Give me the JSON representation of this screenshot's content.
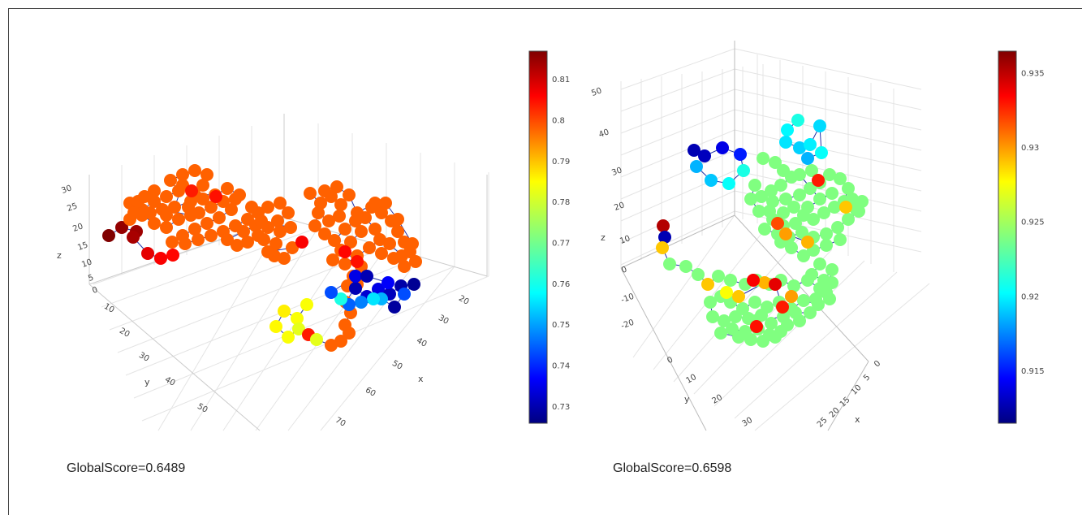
{
  "chart_data": [
    {
      "type": "scatter3d",
      "title": "",
      "xlabel": "x",
      "ylabel": "y",
      "zlabel": "z",
      "x_ticks": [
        "20",
        "30",
        "40",
        "50",
        "60",
        "70"
      ],
      "y_ticks": [
        "10",
        "20",
        "30",
        "40",
        "50"
      ],
      "z_ticks": [
        "0",
        "5",
        "10",
        "15",
        "20",
        "25",
        "30"
      ],
      "colorbar": {
        "colorscale": "jet",
        "ticks": [
          "0.73",
          "0.74",
          "0.75",
          "0.76",
          "0.77",
          "0.78",
          "0.79",
          "0.8",
          "0.81"
        ],
        "range": [
          0.726,
          0.817
        ]
      },
      "global_score_label": "GlobalScore=0.6489"
    },
    {
      "type": "scatter3d",
      "title": "",
      "xlabel": "x",
      "ylabel": "y",
      "zlabel": "z",
      "x_ticks": [
        "0",
        "5",
        "10",
        "15",
        "20",
        "25"
      ],
      "y_ticks": [
        "0",
        "10",
        "20",
        "30"
      ],
      "z_ticks": [
        "-20",
        "-10",
        "0",
        "10",
        "20",
        "30",
        "40",
        "50"
      ],
      "colorbar": {
        "colorscale": "jet",
        "ticks": [
          "0.915",
          "0.92",
          "0.925",
          "0.93",
          "0.935"
        ],
        "range": [
          0.9115,
          0.9365
        ]
      },
      "global_score_label": "GlobalScore=0.6598"
    }
  ]
}
